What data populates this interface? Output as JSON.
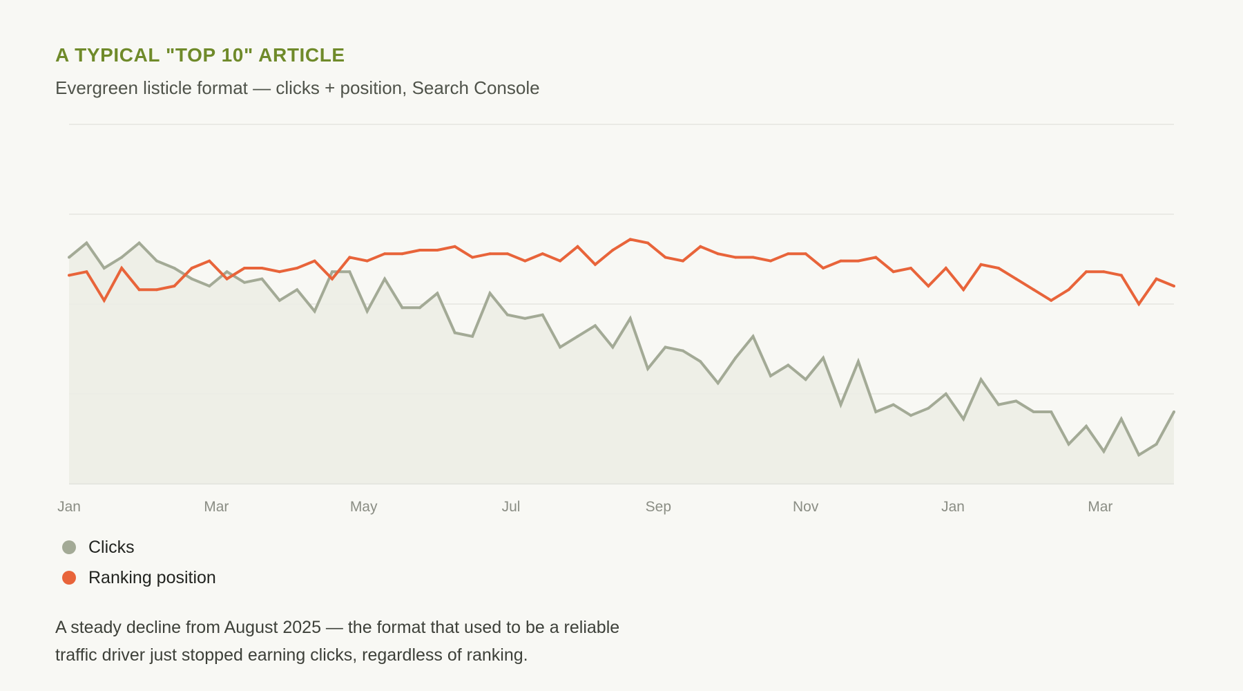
{
  "header": {
    "eyebrow": "A TYPICAL \"TOP 10\" ARTICLE",
    "subtitle": "Evergreen listicle format — clicks + position, Search Console"
  },
  "legend": {
    "items": [
      {
        "label": "Clicks",
        "color": "#a3aa96"
      },
      {
        "label": "Ranking position",
        "color": "#e8643a"
      }
    ]
  },
  "caption": {
    "line1": "A steady decline from August 2025 — the format that used to be a reliable",
    "line2": "traffic driver just stopped earning clicks, regardless of ranking."
  },
  "chart_data": {
    "type": "line",
    "title": "A TYPICAL \"TOP 10\" ARTICLE",
    "subtitle": "Evergreen listicle format — clicks + position, Search Console",
    "xlabel": "",
    "ylabel": "",
    "x_tick_labels": [
      "Jan",
      "Mar",
      "May",
      "Jul",
      "Sep",
      "Nov",
      "Jan",
      "Mar"
    ],
    "x_tick_weeks": [
      0,
      8.4,
      16.8,
      25.2,
      33.6,
      42,
      50.4,
      58.8
    ],
    "week_count": 64,
    "ylim": [
      0,
      100
    ],
    "grid": true,
    "gridlines": [
      0,
      25,
      50,
      75,
      100
    ],
    "legend_position": "bottom-left",
    "series": [
      {
        "name": "Clicks",
        "color": "#a3aa96",
        "area": true,
        "values": [
          63,
          67,
          60,
          63,
          67,
          62,
          60,
          57,
          55,
          59,
          56,
          57,
          51,
          54,
          48,
          59,
          59,
          48,
          57,
          49,
          49,
          53,
          42,
          41,
          53,
          47,
          46,
          47,
          38,
          41,
          44,
          38,
          46,
          32,
          38,
          37,
          34,
          28,
          35,
          41,
          30,
          33,
          29,
          35,
          22,
          34,
          20,
          22,
          19,
          21,
          25,
          18,
          29,
          22,
          23,
          20,
          20,
          11,
          16,
          9,
          18,
          8,
          11,
          20
        ]
      },
      {
        "name": "Ranking position",
        "color": "#e8643a",
        "area": false,
        "values": [
          58,
          59,
          51,
          60,
          54,
          54,
          55,
          60,
          62,
          57,
          60,
          60,
          59,
          60,
          62,
          57,
          63,
          62,
          64,
          64,
          65,
          65,
          66,
          63,
          64,
          64,
          62,
          64,
          62,
          66,
          61,
          65,
          68,
          67,
          63,
          62,
          66,
          64,
          63,
          63,
          62,
          64,
          64,
          60,
          62,
          62,
          63,
          59,
          60,
          55,
          60,
          54,
          61,
          60,
          57,
          54,
          51,
          54,
          59,
          59,
          58,
          50,
          57,
          55
        ]
      }
    ]
  }
}
